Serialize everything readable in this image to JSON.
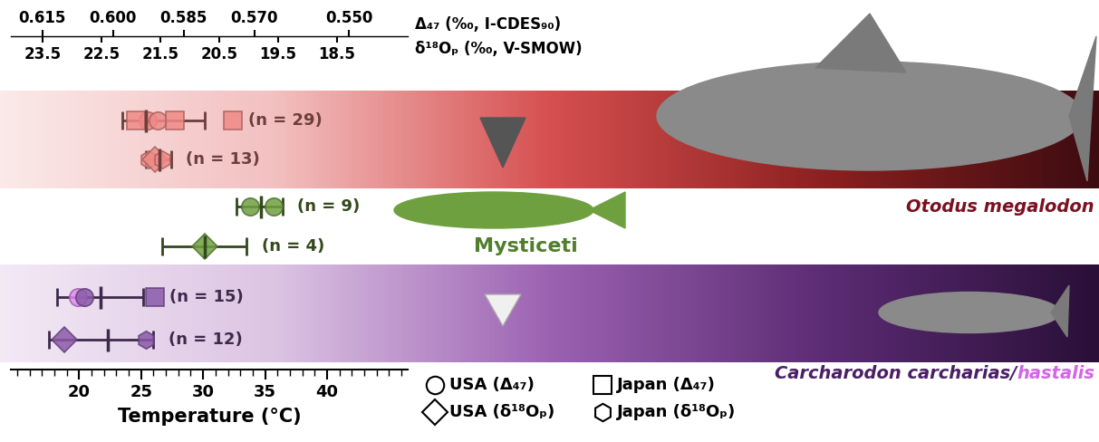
{
  "chart_data": {
    "type": "scatter",
    "xlabel": "Temperature (°C)",
    "xlim": [
      14.5,
      46.5
    ],
    "xticks": [
      20,
      25,
      30,
      35,
      40
    ],
    "xminor_ticks": [
      15,
      16,
      17,
      18,
      19,
      20,
      21,
      22,
      23,
      24,
      25,
      26,
      27,
      28,
      29,
      30,
      31,
      32,
      33,
      34,
      35,
      36,
      37,
      38,
      39,
      40,
      41,
      42,
      43,
      44,
      45,
      46
    ],
    "top_axes": [
      {
        "label": "Δ₄₇ (‰, I-CDES₉₀)",
        "xlim": [
          0.6217,
          0.5375
        ],
        "xticks": [
          0.615,
          {
            "value": 0.6,
            "label": "0.600"
          },
          0.585,
          {
            "value": 0.57,
            "label": "0.570"
          },
          {
            "value": 0.55,
            "label": "0.550"
          }
        ]
      },
      {
        "label": "δ¹⁸Oₚ (‰, V-SMOW)",
        "xlim": [
          24.04,
          17.3
        ],
        "xticks": [
          23.5,
          22.5,
          21.5,
          20.5,
          19.5,
          18.5
        ]
      }
    ],
    "groups": [
      {
        "name_parts": [
          {
            "text": "Otodus megalodon",
            "color": "#7a1020"
          }
        ],
        "color": "#f08a86",
        "rows": [
          {
            "n_label": "(n = 29)",
            "mean": 25.4,
            "error": [
              23.5,
              30.1
            ],
            "points": [
              {
                "marker": "circle",
                "value": 25.5
              },
              {
                "marker": "circle",
                "value": 26.3
              },
              {
                "marker": "square",
                "value": 24.6
              },
              {
                "marker": "square",
                "value": 27.7
              },
              {
                "marker": "square",
                "value": 32.4
              }
            ]
          },
          {
            "n_label": "(n = 13)",
            "mean": 26.5,
            "error": [
              25.4,
              27.4
            ],
            "points": [
              {
                "marker": "hexagon",
                "value": 25.6
              },
              {
                "marker": "diamond",
                "value": 26.1
              },
              {
                "marker": "hexagon",
                "value": 26.7
              }
            ]
          }
        ]
      },
      {
        "name_parts": [
          {
            "text": "Mysticeti",
            "color": "#4f7f2a"
          }
        ],
        "color": "#6fa040",
        "rows": [
          {
            "n_label": "(n = 9)",
            "mean": 34.7,
            "error": [
              32.7,
              36.4
            ],
            "points": [
              {
                "marker": "circle",
                "value": 33.8
              },
              {
                "marker": "circle",
                "value": 35.7
              }
            ]
          },
          {
            "n_label": "(n = 4)",
            "mean": 30.1,
            "error": [
              26.7,
              33.5
            ],
            "points": [
              {
                "marker": "diamond",
                "value": 30.1
              }
            ]
          }
        ]
      },
      {
        "name_parts": [
          {
            "text": "Carcharodon carcharias/",
            "color": "#4b1f66"
          },
          {
            "text": "hastalis",
            "color": "#d266e6"
          }
        ],
        "color": "#8a5aa8",
        "rows": [
          {
            "n_label": "(n = 15)",
            "mean": 21.7,
            "error": [
              18.2,
              25.2
            ],
            "points": [
              {
                "marker": "circle",
                "value": 19.9,
                "color": "#df8cf0"
              },
              {
                "marker": "circle",
                "value": 20.4
              },
              {
                "marker": "square",
                "value": 26.1
              }
            ]
          },
          {
            "n_label": "(n = 12)",
            "mean": 22.3,
            "error": [
              17.6,
              26.0
            ],
            "points": [
              {
                "marker": "diamond",
                "value": 18.8
              },
              {
                "marker": "hexagon",
                "value": 25.4
              }
            ]
          }
        ]
      }
    ],
    "legend_entries": [
      {
        "name": "USA (Δ₄₇)",
        "marker": "circle"
      },
      {
        "name": "Japan (Δ₄₇)",
        "marker": "square"
      },
      {
        "name": "USA (δ¹⁸Oₚ)",
        "marker": "diamond"
      },
      {
        "name": "Japan (δ¹⁸Oₚ)",
        "marker": "hexagon"
      }
    ]
  }
}
